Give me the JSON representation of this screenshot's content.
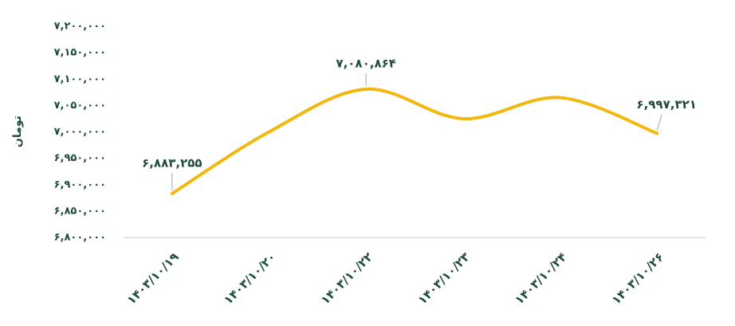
{
  "chart_data": {
    "type": "line",
    "y_label": "تومان",
    "categories": [
      "۱۴۰۳/۱۰/۱۹",
      "۱۴۰۳/۱۰/۲۰",
      "۱۴۰۳/۱۰/۲۲",
      "۱۴۰۳/۱۰/۲۳",
      "۱۴۰۳/۱۰/۲۴",
      "۱۴۰۳/۱۰/۲۶"
    ],
    "series": [
      {
        "color": "#f2b80f",
        "values": [
          6883255,
          7000000,
          7080864,
          7025000,
          7065000,
          6997321
        ],
        "value_labels": [
          "۶,۸۸۳,۲۵۵",
          null,
          "۷,۰۸۰,۸۶۴",
          null,
          null,
          "۶,۹۹۷,۳۲۱"
        ]
      }
    ],
    "ylim": [
      6800000,
      7200000
    ],
    "yticks": [
      {
        "value": 6800000,
        "label": "۶,۸۰۰,۰۰۰"
      },
      {
        "value": 6850000,
        "label": "۶,۸۵۰,۰۰۰"
      },
      {
        "value": 6900000,
        "label": "۶,۹۰۰,۰۰۰"
      },
      {
        "value": 6950000,
        "label": "۶,۹۵۰,۰۰۰"
      },
      {
        "value": 7000000,
        "label": "۷,۰۰۰,۰۰۰"
      },
      {
        "value": 7050000,
        "label": "۷,۰۵۰,۰۰۰"
      },
      {
        "value": 7100000,
        "label": "۷,۱۰۰,۰۰۰"
      },
      {
        "value": 7150000,
        "label": "۷,۱۵۰,۰۰۰"
      },
      {
        "value": 7200000,
        "label": "۷,۲۰۰,۰۰۰"
      }
    ],
    "grid": false
  }
}
